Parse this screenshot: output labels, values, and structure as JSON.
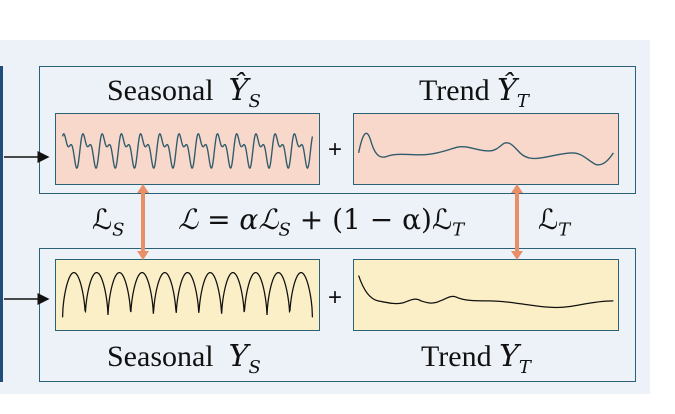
{
  "top": {
    "seasonal_label": "Seasonal",
    "seasonal_symbol": "Ŷ",
    "seasonal_sub": "S",
    "trend_label": "Trend",
    "trend_symbol": "Ŷ",
    "trend_sub": "T",
    "plus": "+"
  },
  "bottom": {
    "seasonal_label": "Seasonal",
    "seasonal_symbol": "Y",
    "seasonal_sub": "S",
    "trend_label": "Trend",
    "trend_symbol": "Y",
    "trend_sub": "T",
    "plus": "+"
  },
  "loss": {
    "left_symbol": "ℒ",
    "left_sub": "S",
    "equation_main": "ℒ = αℒ",
    "equation_sub1": "S",
    "equation_mid": " + (1 − α)ℒ",
    "equation_sub2": "T",
    "right_symbol": "ℒ",
    "right_sub": "T"
  },
  "colors": {
    "box_border": "#2b6275",
    "pred_fill": "#f7d8cb",
    "gt_fill": "#fbefc7",
    "pred_line": "#2f5b6b",
    "gt_line": "#111111",
    "loss_arrow": "#e88f68",
    "background": "#edf2f8"
  }
}
